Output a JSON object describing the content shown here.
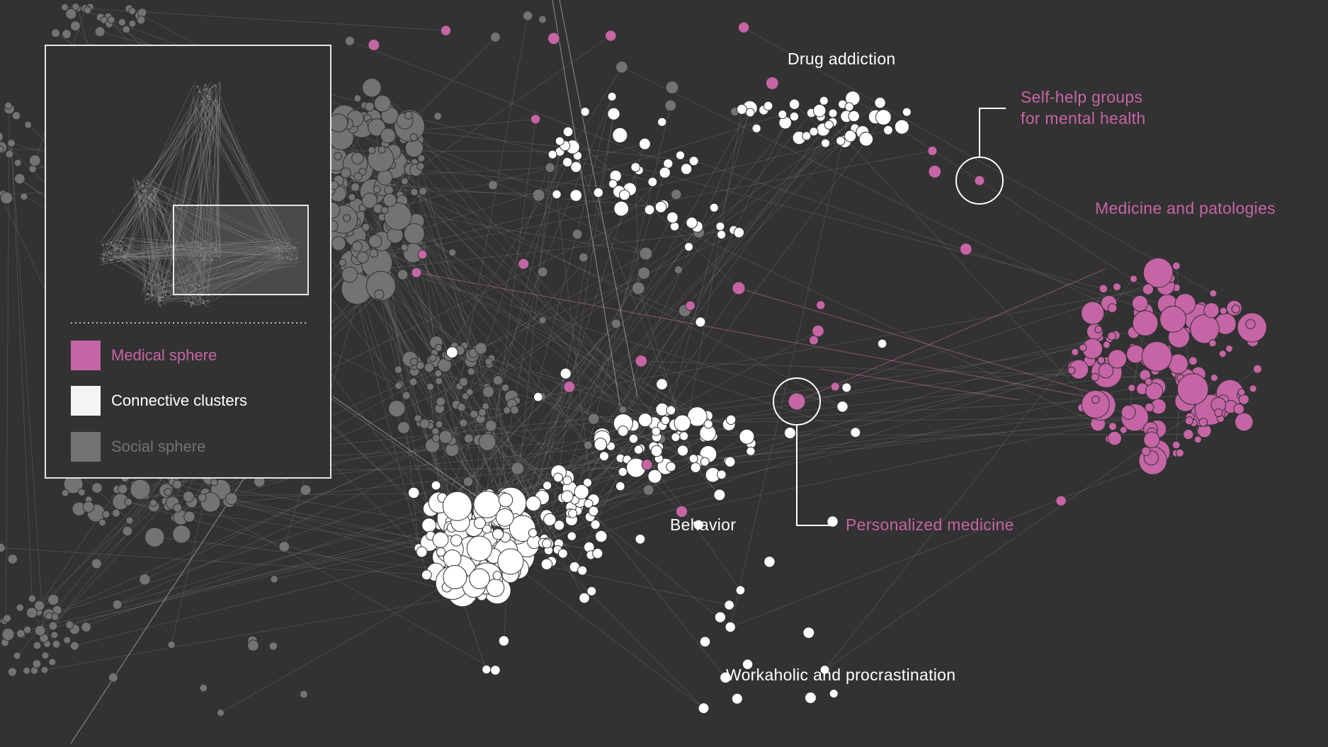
{
  "labels": {
    "drug_addiction": "Drug addiction",
    "self_help": "Self-help groups",
    "self_help_2": "for mental health",
    "medicine_patologies": "Medicine and patologies",
    "personalized_medicine": "Personalized medicine",
    "behavior": "Behavior",
    "workaholic": "Workaholic and procrastination"
  },
  "legend": {
    "items": [
      {
        "label": "Medical sphere",
        "color": "#c565a6"
      },
      {
        "label": "Connective clusters",
        "color": "#f4f4f4"
      },
      {
        "label": "Social sphere",
        "color": "#737373"
      }
    ]
  },
  "colors": {
    "background": "#333232",
    "medical": "#c565a6",
    "connective": "#ffffff",
    "social": "#737373",
    "edge": "#8a8a8a"
  }
}
